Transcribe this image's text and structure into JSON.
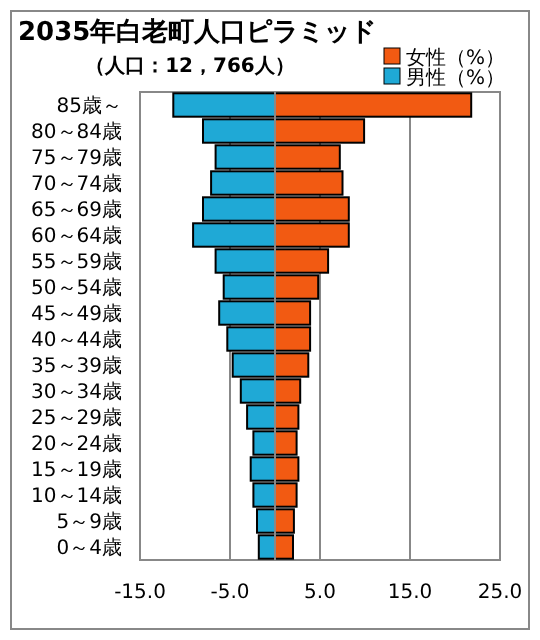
{
  "chart_data": {
    "type": "bar",
    "orientation": "horizontal",
    "stacked": true,
    "title": "2035年白老町人口ピラミッド",
    "subtitle": "（人口：12，766人）",
    "categories": [
      "85歳～",
      "80～84歳",
      "75～79歳",
      "70～74歳",
      "65～69歳",
      "60～64歳",
      "55～59歳",
      "50～54歳",
      "45～49歳",
      "40～44歳",
      "35～39歳",
      "30～34歳",
      "25～29歳",
      "20～24歳",
      "15～19歳",
      "10～14歳",
      "5～9歳",
      "0～4歳"
    ],
    "series": [
      {
        "name": "女性（%）",
        "color": "#f25a12",
        "values": [
          21.8,
          9.9,
          7.2,
          7.5,
          8.2,
          8.2,
          5.9,
          4.8,
          3.9,
          3.9,
          3.7,
          2.8,
          2.6,
          2.4,
          2.6,
          2.4,
          2.1,
          2.0
        ]
      },
      {
        "name": "男性（%）",
        "color": "#1fa9d6",
        "values": [
          -11.3,
          -8.0,
          -6.6,
          -7.1,
          -8.0,
          -9.1,
          -6.6,
          -5.7,
          -6.2,
          -5.3,
          -4.7,
          -3.8,
          -3.1,
          -2.4,
          -2.7,
          -2.4,
          -2.0,
          -1.8
        ]
      }
    ],
    "xlim": [
      -15,
      25
    ],
    "xticks": [
      {
        "value": -15,
        "label": "-15.0"
      },
      {
        "value": -5,
        "label": "-5.0"
      },
      {
        "value": 5,
        "label": "5.0"
      },
      {
        "value": 15,
        "label": "15.0"
      },
      {
        "value": 25,
        "label": "25.0"
      }
    ],
    "grid": "x",
    "legend": "top right"
  }
}
